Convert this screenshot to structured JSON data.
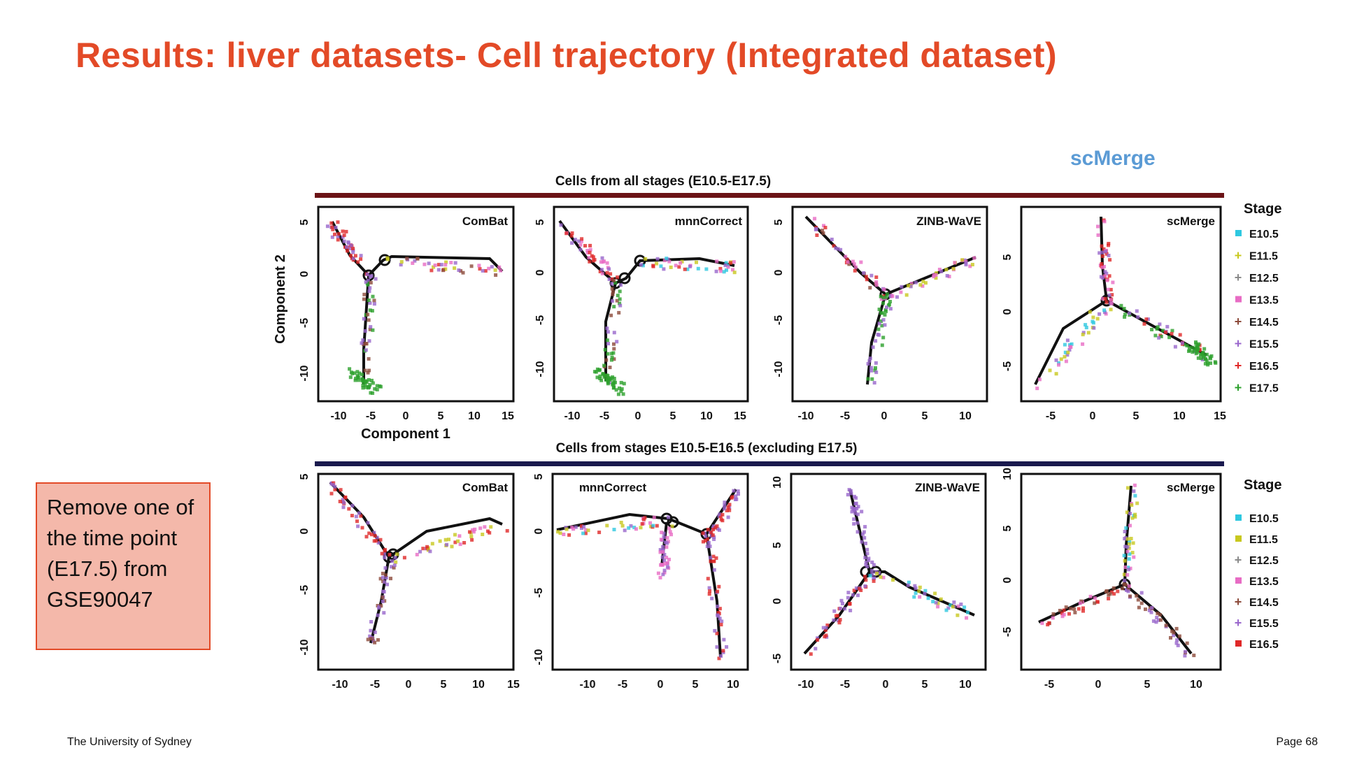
{
  "slide": {
    "title": "Results: liver datasets- Cell trajectory (Integrated dataset)",
    "highlight_label": "scMerge",
    "note": "Remove one of the time point (E17.5) from GSE90047",
    "footer_left": "The University of Sydney",
    "footer_right": "Page 68",
    "colors": {
      "title": "#e34a27",
      "highlight": "#5b9bd5",
      "note_fill": "#f4b8aa",
      "row1_bar": "#6b1316",
      "row2_bar": "#1a1a4e"
    }
  },
  "figure": {
    "rows": [
      {
        "title": "Cells from all stages (E10.5-E17.5)",
        "bar_color": "#6b1316",
        "xlabel": "Component 1",
        "ylabel": "Component 2",
        "legend_title": "Stage",
        "legend": [
          {
            "label": "E10.5",
            "color": "#2ec8e0",
            "marker": "square"
          },
          {
            "label": "E11.5",
            "color": "#c8c81e",
            "marker": "plus"
          },
          {
            "label": "E12.5",
            "color": "#8a8a8a",
            "marker": "plus"
          },
          {
            "label": "E13.5",
            "color": "#e86cc4",
            "marker": "square"
          },
          {
            "label": "E14.5",
            "color": "#8c4a3a",
            "marker": "plus"
          },
          {
            "label": "E15.5",
            "color": "#9966cc",
            "marker": "plus"
          },
          {
            "label": "E16.5",
            "color": "#e02828",
            "marker": "plus"
          },
          {
            "label": "E17.5",
            "color": "#2ca02c",
            "marker": "plus"
          }
        ],
        "panels": [
          {
            "name": "ComBat",
            "xticks": [
              "-10",
              "-5",
              "0",
              "5",
              "10",
              "15"
            ],
            "yticks": [
              "5",
              "0",
              "-5",
              "-10"
            ]
          },
          {
            "name": "mnnCorrect",
            "xticks": [
              "-10",
              "-5",
              "0",
              "5",
              "10",
              "15"
            ],
            "yticks": [
              "5",
              "0",
              "-5",
              "-10"
            ]
          },
          {
            "name": "ZINB-WaVE",
            "xticks": [
              "-10",
              "-5",
              "0",
              "5",
              "10"
            ],
            "yticks": [
              "5",
              "0",
              "-5",
              "-10"
            ]
          },
          {
            "name": "scMerge",
            "xticks": [
              "-5",
              "0",
              "5",
              "10",
              "15"
            ],
            "yticks": [
              "5",
              "0",
              "-5"
            ]
          }
        ]
      },
      {
        "title": "Cells from stages E10.5-E16.5 (excluding E17.5)",
        "bar_color": "#1a1a4e",
        "legend_title": "Stage",
        "legend": [
          {
            "label": "E10.5",
            "color": "#2ec8e0",
            "marker": "square"
          },
          {
            "label": "E11.5",
            "color": "#c8c81e",
            "marker": "square"
          },
          {
            "label": "E12.5",
            "color": "#8a8a8a",
            "marker": "plus"
          },
          {
            "label": "E13.5",
            "color": "#e86cc4",
            "marker": "square"
          },
          {
            "label": "E14.5",
            "color": "#8c4a3a",
            "marker": "plus"
          },
          {
            "label": "E15.5",
            "color": "#9966cc",
            "marker": "plus"
          },
          {
            "label": "E16.5",
            "color": "#e02828",
            "marker": "square"
          }
        ],
        "panels": [
          {
            "name": "ComBat",
            "xticks": [
              "-10",
              "-5",
              "0",
              "5",
              "10",
              "15"
            ],
            "yticks": [
              "5",
              "0",
              "-5",
              "-10"
            ]
          },
          {
            "name": "mnnCorrect",
            "xticks": [
              "-10",
              "-5",
              "0",
              "5",
              "10"
            ],
            "yticks": [
              "5",
              "0",
              "-5",
              "-10"
            ]
          },
          {
            "name": "ZINB-WaVE",
            "xticks": [
              "-10",
              "-5",
              "0",
              "5",
              "10"
            ],
            "yticks": [
              "10",
              "5",
              "0",
              "-5"
            ]
          },
          {
            "name": "scMerge",
            "xticks": [
              "-5",
              "0",
              "5",
              "10"
            ],
            "yticks": [
              "10",
              "5",
              "0",
              "-5"
            ]
          }
        ]
      }
    ]
  }
}
